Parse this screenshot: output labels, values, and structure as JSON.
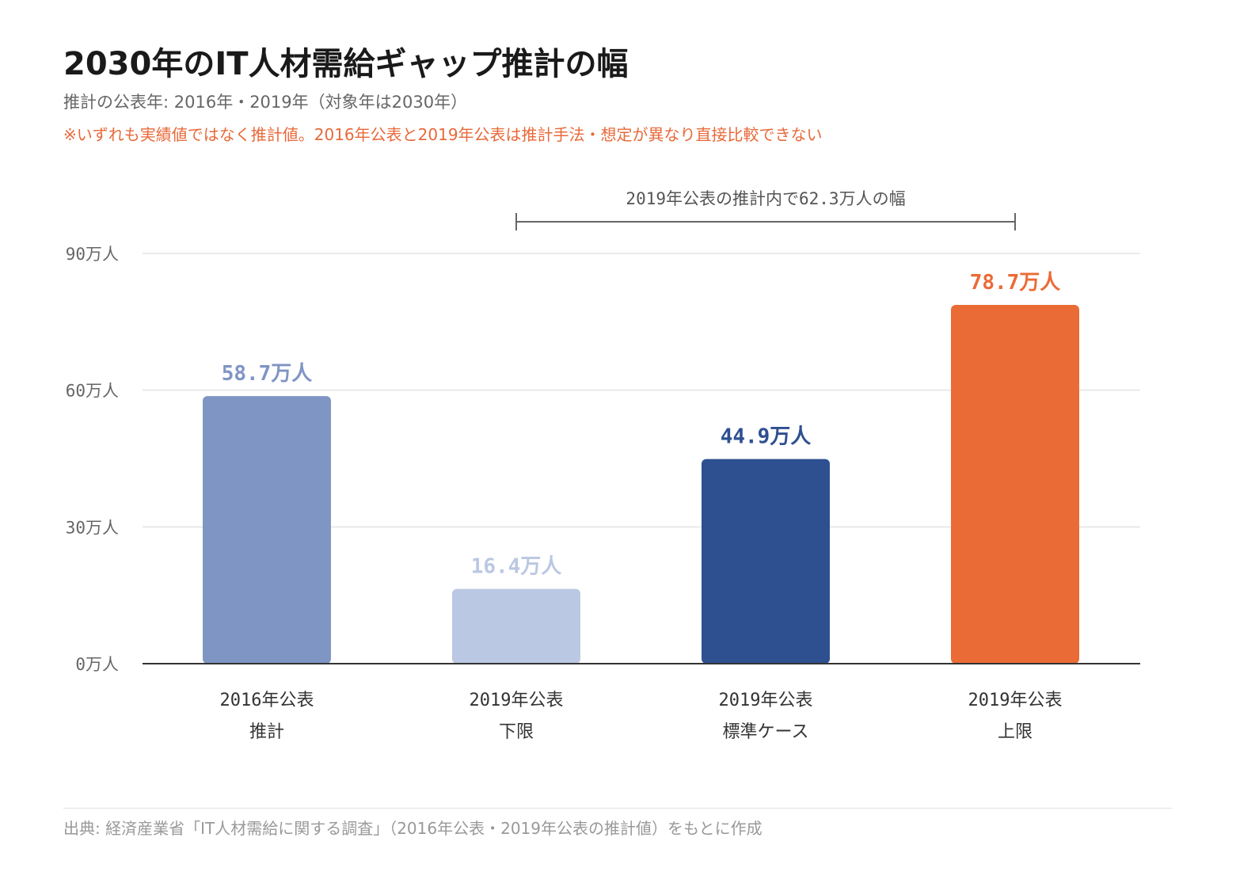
{
  "title": "2030年のIT人材需給ギャップ推計の幅",
  "subtitle": "推計の公表年: 2016年・2019年（対象年は2030年）",
  "note": "※いずれも実績値ではなく推計値。2016年公表と2019年公表は推計手法・想定が異なり直接比較できない",
  "source": "出典: 経済産業省「IT人材需給に関する調査」（2016年公表・2019年公表の推計値）をもとに作成",
  "chart_data": {
    "type": "bar",
    "categories": [
      [
        "2016年公表",
        "推計"
      ],
      [
        "2019年公表",
        "下限"
      ],
      [
        "2019年公表",
        "標準ケース"
      ],
      [
        "2019年公表",
        "上限"
      ]
    ],
    "values": [
      58.7,
      16.4,
      44.9,
      78.7
    ],
    "value_labels": [
      "58.7万人",
      "16.4万人",
      "44.9万人",
      "78.7万人"
    ],
    "colors": [
      "#7f95c4",
      "#bbc8e3",
      "#2e5090",
      "#eb6b36"
    ],
    "label_colors": [
      "#7f95c4",
      "#bbc8e3",
      "#2e5090",
      "#eb6b36"
    ],
    "ylim": [
      0,
      90
    ],
    "yticks": [
      0,
      30,
      60,
      90
    ],
    "ytick_labels": [
      "0万人",
      "30万人",
      "60万人",
      "90万人"
    ],
    "grid": true,
    "annotation": {
      "text": "2019年公表の推計内で62.3万人の幅",
      "from_category": 1,
      "to_category": 3
    }
  }
}
